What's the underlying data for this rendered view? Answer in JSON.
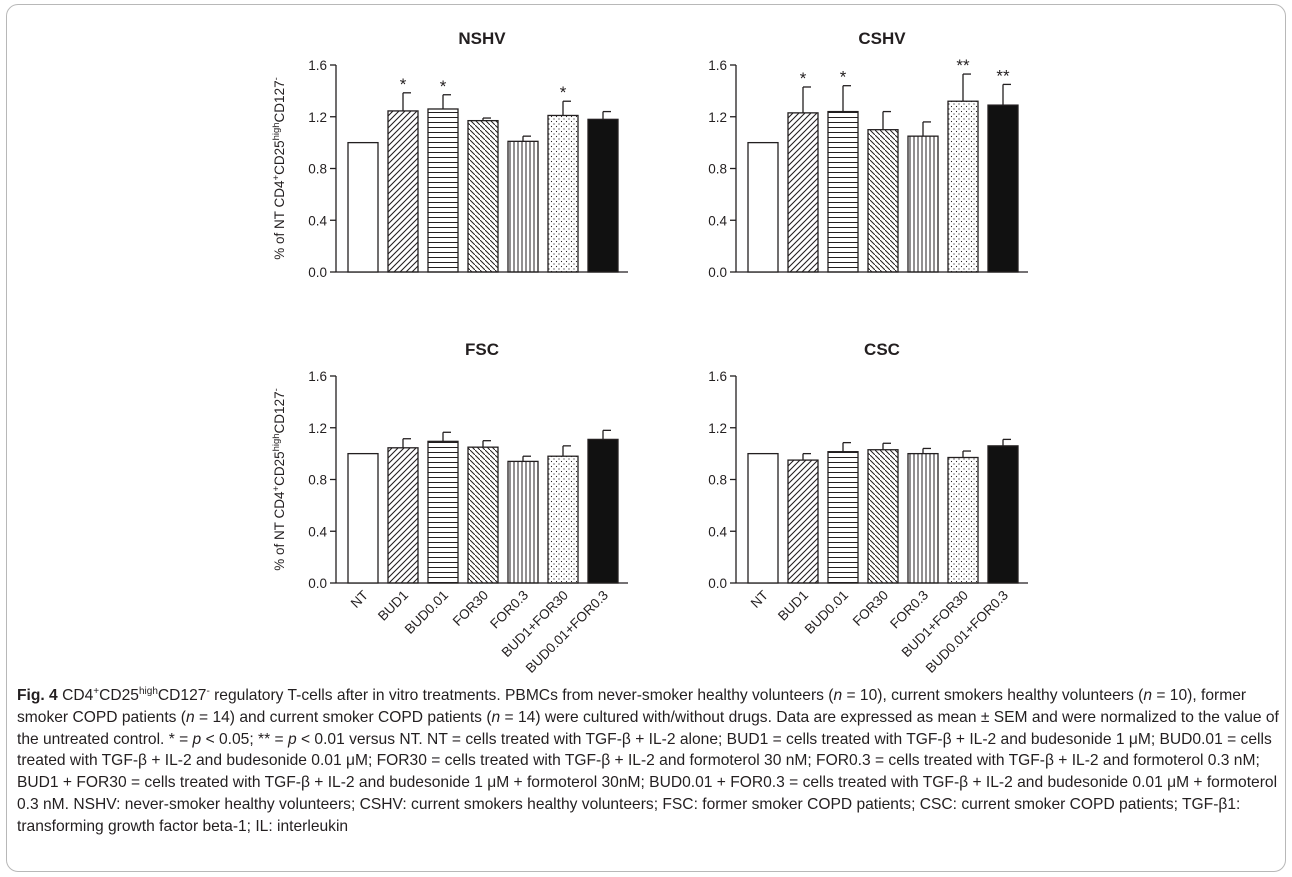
{
  "colors": {
    "axis": "#231f20",
    "bar_fill_light": "#ffffff",
    "bar_fill_dark": "#111111",
    "frame_border": "#b8b8b8"
  },
  "chart_data": [
    {
      "type": "bar",
      "title": "NSHV",
      "ylabel_parts": [
        "% of NT CD4",
        "+",
        "CD25",
        "high",
        "CD127",
        "-"
      ],
      "categories": [
        "NT",
        "BUD1",
        "BUD0.01",
        "FOR30",
        "FOR0.3",
        "BUD1+FOR30",
        "BUD0.01+FOR0.3"
      ],
      "patterns": [
        "open",
        "diagonal",
        "horizontal",
        "backdiagonal",
        "vertical",
        "dots",
        "solid"
      ],
      "values": [
        1.0,
        1.245,
        1.26,
        1.17,
        1.01,
        1.21,
        1.18
      ],
      "errors": [
        0.0,
        0.14,
        0.11,
        0.02,
        0.04,
        0.11,
        0.06
      ],
      "significance": [
        "",
        "*",
        "*",
        "",
        "",
        "*",
        ""
      ],
      "ylim": [
        0,
        1.6
      ],
      "yticks": [
        "0.0",
        "0.4",
        "0.8",
        "1.2",
        "1.6"
      ],
      "show_xticks": false
    },
    {
      "type": "bar",
      "title": "CSHV",
      "categories": [
        "NT",
        "BUD1",
        "BUD0.01",
        "FOR30",
        "FOR0.3",
        "BUD1+FOR30",
        "BUD0.01+FOR0.3"
      ],
      "patterns": [
        "open",
        "diagonal",
        "horizontal",
        "backdiagonal",
        "vertical",
        "dots",
        "solid"
      ],
      "values": [
        1.0,
        1.23,
        1.24,
        1.1,
        1.05,
        1.32,
        1.29
      ],
      "errors": [
        0.0,
        0.2,
        0.2,
        0.14,
        0.11,
        0.21,
        0.16
      ],
      "significance": [
        "",
        "*",
        "*",
        "",
        "",
        "**",
        "**"
      ],
      "ylim": [
        0,
        1.6
      ],
      "yticks": [
        "0.0",
        "0.4",
        "0.8",
        "1.2",
        "1.6"
      ],
      "show_xticks": false
    },
    {
      "type": "bar",
      "title": "FSC",
      "ylabel_parts": [
        "% of NT CD4",
        "+",
        "CD25",
        "high",
        "CD127",
        "-"
      ],
      "categories": [
        "NT",
        "BUD1",
        "BUD0.01",
        "FOR30",
        "FOR0.3",
        "BUD1+FOR30",
        "BUD0.01+FOR0.3"
      ],
      "patterns": [
        "open",
        "diagonal",
        "horizontal",
        "backdiagonal",
        "vertical",
        "dots",
        "solid"
      ],
      "values": [
        1.0,
        1.045,
        1.095,
        1.05,
        0.94,
        0.98,
        1.11
      ],
      "errors": [
        0.0,
        0.07,
        0.07,
        0.05,
        0.04,
        0.08,
        0.07
      ],
      "significance": [
        "",
        "",
        "",
        "",
        "",
        "",
        ""
      ],
      "ylim": [
        0,
        1.6
      ],
      "yticks": [
        "0.0",
        "0.4",
        "0.8",
        "1.2",
        "1.6"
      ],
      "show_xticks": true
    },
    {
      "type": "bar",
      "title": "CSC",
      "categories": [
        "NT",
        "BUD1",
        "BUD0.01",
        "FOR30",
        "FOR0.3",
        "BUD1+FOR30",
        "BUD0.01+FOR0.3"
      ],
      "patterns": [
        "open",
        "diagonal",
        "horizontal",
        "backdiagonal",
        "vertical",
        "dots",
        "solid"
      ],
      "values": [
        1.0,
        0.95,
        1.015,
        1.03,
        1.0,
        0.97,
        1.06
      ],
      "errors": [
        0.0,
        0.05,
        0.07,
        0.05,
        0.04,
        0.05,
        0.05
      ],
      "significance": [
        "",
        "",
        "",
        "",
        "",
        "",
        ""
      ],
      "ylim": [
        0,
        1.6
      ],
      "yticks": [
        "0.0",
        "0.4",
        "0.8",
        "1.2",
        "1.6"
      ],
      "show_xticks": true
    }
  ],
  "caption": {
    "label": "Fig. 4",
    "t1": " CD4",
    "t1_sup1": "+",
    "t2": "CD25",
    "t2_sup": "high",
    "t3": "CD127",
    "t3_sup": "-",
    "t4": " regulatory T-cells after in vitro treatments. PBMCs from never-smoker healthy volunteers (",
    "n": "n",
    "t5": " = 10), current smokers healthy volunteers (",
    "t6": " = 10), former smoker COPD patients (",
    "t7": " = 14) and current smoker COPD patients (",
    "t8": " = 14) were cultured with/without drugs. Data are expressed as mean ± SEM and were normalized to the value of the untreated control. * = ",
    "p": "p",
    "t9": " < 0.05; ** = ",
    "t10": " < 0.01 versus NT. NT = cells treated with TGF-β + IL-2 alone; BUD1 = cells treated with TGF-β + IL-2 and budesonide 1 μM; BUD0.01 = cells treated with TGF-β + IL-2 and budesonide 0.01 μM; FOR30 = cells treated with TGF-β + IL-2 and formoterol 30 nM; FOR0.3 = cells treated with TGF-β + IL-2 and formoterol 0.3 nM; BUD1 + FOR30 = cells treated with TGF-β + IL-2 and budesonide 1 μM + formoterol 30nM; BUD0.01 + FOR0.3 = cells treated with TGF-β + IL-2 and budesonide 0.01 μM + formoterol 0.3 nM. NSHV: never-smoker healthy volunteers; CSHV: current smokers healthy volunteers; FSC: former smoker COPD patients; CSC: current smoker COPD patients; TGF-β1: transforming growth factor beta-1; IL: interleukin"
  }
}
